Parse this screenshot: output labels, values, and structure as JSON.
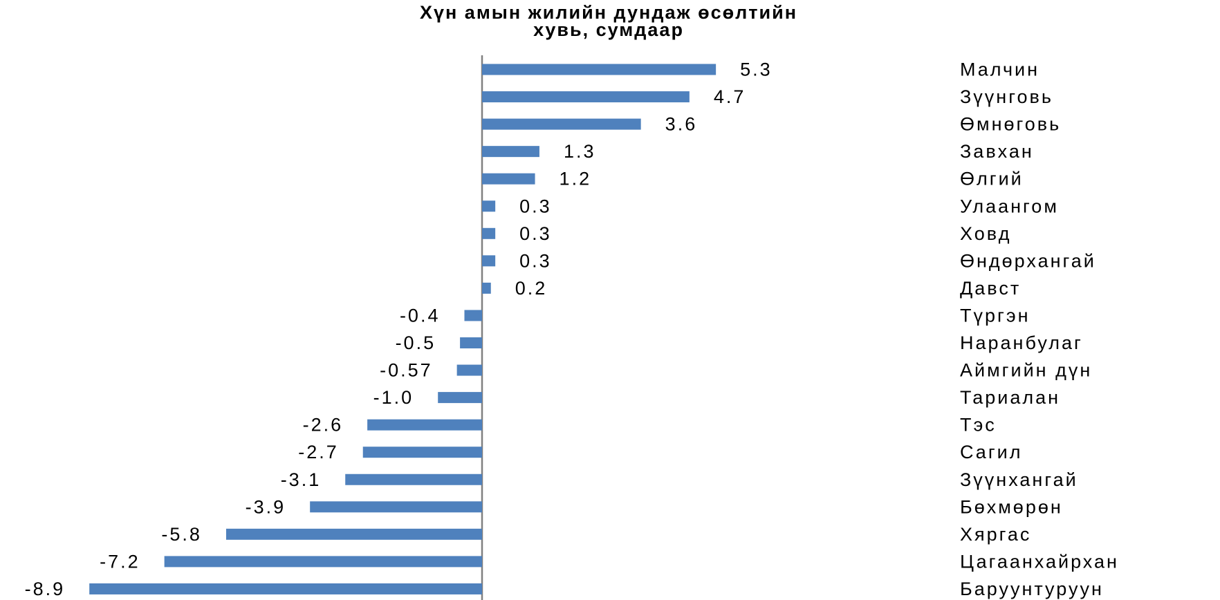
{
  "chart_data": {
    "type": "bar",
    "orientation": "horizontal",
    "title_line1": "Хүн амын  жилийн  дундаж  өсөлтийн",
    "title_line2": "хувь, сумдаар",
    "categories": [
      "Малчин",
      "Зүүнговь",
      "Өмнөговь",
      "Завхан",
      "Өлгий",
      "Улаангом",
      "Ховд",
      "Өндөрхангай",
      "Давст",
      "Түргэн",
      "Наранбулаг",
      "Аймгийн дүн",
      "Тариалан",
      "Тэс",
      "Сагил",
      "Зүүнхангай",
      "Бөхмөрөн",
      "Хяргас",
      "Цагаанхайрхан",
      "Баруунтуруун"
    ],
    "value_labels": [
      "5.3",
      "4.7",
      "3.6",
      "1.3",
      "1.2",
      "0.3",
      "0.3",
      "0.3",
      "0.2",
      "-0.4",
      "-0.5",
      "-0.57",
      "-1.0",
      "-2.6",
      "-2.7",
      "-3.1",
      "-3.9",
      "-5.8",
      "-7.2",
      "-8.9"
    ],
    "values": [
      5.3,
      4.7,
      3.6,
      1.3,
      1.2,
      0.3,
      0.3,
      0.3,
      0.2,
      -0.4,
      -0.5,
      -0.57,
      -1.0,
      -2.6,
      -2.7,
      -3.1,
      -3.9,
      -5.8,
      -7.2,
      -8.9
    ],
    "bar_color": "#4F81BD",
    "axis_color": "#808080",
    "xlim": [
      -8.9,
      5.3
    ],
    "grid": false,
    "legend": "none"
  }
}
